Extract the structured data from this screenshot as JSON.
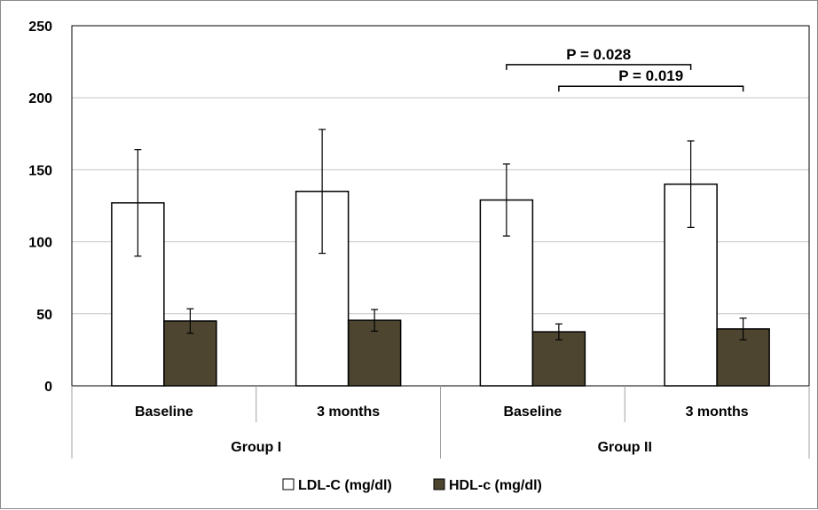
{
  "chart_data": {
    "type": "bar",
    "categories": [
      {
        "label": "Baseline",
        "group": "Group I"
      },
      {
        "label": "3 months",
        "group": "Group I"
      },
      {
        "label": "Baseline",
        "group": "Group II"
      },
      {
        "label": "3 months",
        "group": "Group II"
      }
    ],
    "groups": [
      "Group I",
      "Group II"
    ],
    "series": [
      {
        "name": "LDL-C (mg/dl)",
        "color": "#ffffff",
        "values": [
          127,
          135,
          129,
          140
        ],
        "errors": [
          37,
          43,
          25,
          30
        ]
      },
      {
        "name": "HDL-c (mg/dl)",
        "color": "#4d4530",
        "values": [
          45,
          45.5,
          37.5,
          39.5
        ],
        "errors": [
          8.5,
          7.5,
          5.5,
          7.5
        ]
      }
    ],
    "ylim": [
      0,
      250
    ],
    "yticks": [
      0,
      50,
      100,
      150,
      200,
      250
    ],
    "grid": true,
    "legend_position": "bottom",
    "annotations": [
      {
        "text": "P = 0.028",
        "from_category": 2,
        "to_category": 3,
        "series": 0
      },
      {
        "text": "P = 0.019",
        "from_category": 2,
        "to_category": 3,
        "series": 1
      }
    ]
  }
}
